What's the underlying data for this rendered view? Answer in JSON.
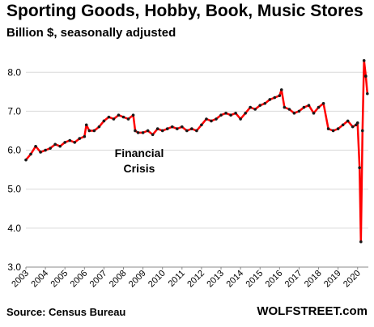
{
  "header": {
    "title": "Sporting Goods, Hobby, Book, Music Stores",
    "subtitle": "Billion $, seasonally adjusted"
  },
  "footer": {
    "source": "Source: Census Bureau",
    "brand": "WOLFSTREET.com"
  },
  "colors": {
    "line": "#ff0000",
    "marker": "#1a1a1a",
    "grid": "#d9d9d9"
  },
  "chart_data": {
    "type": "line",
    "title": "Sporting Goods, Hobby, Book, Music Stores",
    "subtitle": "Billion $, seasonally adjusted",
    "xlabel": "",
    "ylabel": "",
    "ylim": [
      3.0,
      8.4
    ],
    "xlim": [
      2003.0,
      2020.55
    ],
    "y_ticks": [
      "3.0",
      "4.0",
      "5.0",
      "6.0",
      "7.0",
      "8.0"
    ],
    "x_ticks": [
      "2003",
      "2004",
      "2005",
      "2006",
      "2007",
      "2008",
      "2009",
      "2010",
      "2011",
      "2012",
      "2013",
      "2014",
      "2015",
      "2016",
      "2017",
      "2018",
      "2019",
      "2020"
    ],
    "grid": "horizontal",
    "annotations": [
      {
        "line1": "Financial",
        "line2": "Crisis"
      }
    ],
    "series": [
      {
        "x": [
          2003.0,
          2003.25,
          2003.5,
          2003.75,
          2004.0,
          2004.25,
          2004.5,
          2004.75,
          2005.0,
          2005.25,
          2005.5,
          2005.75,
          2006.0,
          2006.1,
          2006.25,
          2006.5,
          2006.75,
          2007.0,
          2007.25,
          2007.5,
          2007.75,
          2008.0,
          2008.25,
          2008.5,
          2008.6,
          2008.75,
          2009.0,
          2009.25,
          2009.5,
          2009.75,
          2010.0,
          2010.25,
          2010.5,
          2010.75,
          2011.0,
          2011.25,
          2011.5,
          2011.75,
          2012.0,
          2012.25,
          2012.5,
          2012.75,
          2013.0,
          2013.25,
          2013.5,
          2013.75,
          2014.0,
          2014.25,
          2014.5,
          2014.75,
          2015.0,
          2015.25,
          2015.5,
          2015.75,
          2016.0,
          2016.1,
          2016.25,
          2016.5,
          2016.75,
          2017.0,
          2017.25,
          2017.5,
          2017.75,
          2018.0,
          2018.25,
          2018.5,
          2018.75,
          2019.0,
          2019.25,
          2019.5,
          2019.75,
          2019.92,
          2020.0,
          2020.1,
          2020.17,
          2020.25,
          2020.33,
          2020.42,
          2020.5
        ],
        "values": [
          5.75,
          5.9,
          6.1,
          5.95,
          6.0,
          6.05,
          6.15,
          6.1,
          6.2,
          6.25,
          6.2,
          6.3,
          6.35,
          6.65,
          6.5,
          6.5,
          6.6,
          6.75,
          6.85,
          6.8,
          6.9,
          6.85,
          6.8,
          6.9,
          6.5,
          6.45,
          6.45,
          6.5,
          6.4,
          6.55,
          6.5,
          6.55,
          6.6,
          6.55,
          6.6,
          6.5,
          6.55,
          6.5,
          6.65,
          6.8,
          6.75,
          6.8,
          6.9,
          6.95,
          6.9,
          6.95,
          6.8,
          6.95,
          7.1,
          7.05,
          7.15,
          7.2,
          7.3,
          7.35,
          7.4,
          7.55,
          7.1,
          7.05,
          6.95,
          7.0,
          7.1,
          7.15,
          6.95,
          7.1,
          7.2,
          6.55,
          6.5,
          6.55,
          6.65,
          6.75,
          6.6,
          6.65,
          6.7,
          5.55,
          3.65,
          6.5,
          8.3,
          7.9,
          7.45
        ]
      }
    ]
  }
}
